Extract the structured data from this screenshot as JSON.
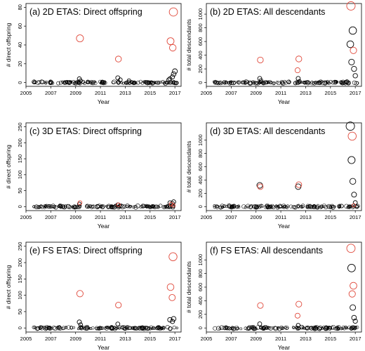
{
  "chart_data": [
    {
      "type": "scatter",
      "title": "(a) 2D ETAS: Direct offspring",
      "xlabel": "Year",
      "ylabel": "# direct offspring",
      "xlim": [
        2005.0,
        2017.5
      ],
      "ylim": [
        0,
        80
      ],
      "xticks": [
        "2005",
        "2007",
        "2009",
        "2011",
        "2013",
        "2015",
        "2017"
      ],
      "yticks": [
        "0",
        "20",
        "40",
        "60",
        "80"
      ],
      "series": [
        {
          "color": "#000000",
          "x": [
            2009.3,
            2009.4,
            2012.4,
            2012.6,
            2013.3,
            2016.5,
            2016.6,
            2016.8,
            2016.9,
            2017.0
          ],
          "y": [
            4,
            2,
            5,
            3,
            2,
            3,
            4,
            6,
            9,
            12
          ]
        },
        {
          "color": "#e0483a",
          "x": [
            2009.35,
            2012.45,
            2016.65,
            2016.88,
            2016.83
          ],
          "y": [
            47,
            25,
            44,
            75,
            37
          ]
        }
      ]
    },
    {
      "type": "scatter",
      "title": "(b) 2D ETAS: All descendants",
      "xlabel": "Year",
      "ylabel": "# total descendants",
      "xlim": [
        2005.0,
        2017.5
      ],
      "ylim": [
        0,
        1100
      ],
      "xticks": [
        "2005",
        "2007",
        "2009",
        "2011",
        "2013",
        "2015",
        "2017"
      ],
      "yticks": [
        "0",
        "200",
        "400",
        "600",
        "800",
        "1000"
      ],
      "series": [
        {
          "color": "#000000",
          "x": [
            2009.3,
            2009.4,
            2012.4,
            2012.5,
            2016.6,
            2016.7,
            2016.8,
            2016.9,
            2017.0
          ],
          "y": [
            60,
            30,
            60,
            20,
            560,
            300,
            760,
            200,
            100
          ]
        },
        {
          "color": "#e0483a",
          "x": [
            2009.35,
            2012.45,
            2012.35,
            2016.65,
            2016.85
          ],
          "y": [
            330,
            345,
            180,
            1120,
            470
          ]
        }
      ]
    },
    {
      "type": "scatter",
      "title": "(c) 3D ETAS: Direct offspring",
      "xlabel": "Year",
      "ylabel": "# direct offspring",
      "xlim": [
        2005.0,
        2017.5
      ],
      "ylim": [
        0,
        250
      ],
      "xticks": [
        "2005",
        "2007",
        "2009",
        "2011",
        "2013",
        "2015",
        "2017"
      ],
      "yticks": [
        "0",
        "50",
        "100",
        "150",
        "200",
        "250"
      ],
      "series": [
        {
          "color": "#000000",
          "x": [
            2009.3,
            2012.4,
            2016.6,
            2016.8,
            2016.9
          ],
          "y": [
            8,
            6,
            12,
            10,
            15
          ]
        },
        {
          "color": "#e0483a",
          "x": [
            2009.35,
            2012.45,
            2016.7,
            2016.88
          ],
          "y": [
            12,
            6,
            8,
            4
          ]
        }
      ]
    },
    {
      "type": "scatter",
      "title": "(d) 3D ETAS: All descendants",
      "xlabel": "Year",
      "ylabel": "# total descendants",
      "xlim": [
        2005.0,
        2017.5
      ],
      "ylim": [
        0,
        1200
      ],
      "xticks": [
        "2005",
        "2007",
        "2009",
        "2011",
        "2013",
        "2015",
        "2017"
      ],
      "yticks": [
        "0",
        "200",
        "400",
        "600",
        "800",
        "1000"
      ],
      "series": [
        {
          "color": "#000000",
          "x": [
            2009.3,
            2012.4,
            2016.6,
            2016.7,
            2016.8,
            2016.9,
            2017.0
          ],
          "y": [
            320,
            300,
            1210,
            700,
            380,
            180,
            60
          ]
        },
        {
          "color": "#e0483a",
          "x": [
            2009.35,
            2012.45,
            2016.75,
            2016.88
          ],
          "y": [
            300,
            330,
            1060,
            20
          ]
        }
      ]
    },
    {
      "type": "scatter",
      "title": "(e) FS ETAS: Direct offspring",
      "xlabel": "Year",
      "ylabel": "# direct offspring",
      "xlim": [
        2005.0,
        2017.5
      ],
      "ylim": [
        0,
        250
      ],
      "xticks": [
        "2005",
        "2007",
        "2009",
        "2011",
        "2013",
        "2015",
        "2017"
      ],
      "yticks": [
        "0",
        "50",
        "100",
        "150",
        "200",
        "250"
      ],
      "series": [
        {
          "color": "#000000",
          "x": [
            2009.3,
            2009.4,
            2012.4,
            2016.6,
            2016.8,
            2016.9
          ],
          "y": [
            18,
            10,
            12,
            25,
            20,
            28
          ]
        },
        {
          "color": "#e0483a",
          "x": [
            2009.35,
            2012.45,
            2016.65,
            2016.85,
            2016.78
          ],
          "y": [
            105,
            70,
            125,
            218,
            93
          ]
        }
      ]
    },
    {
      "type": "scatter",
      "title": "(f) FS ETAS: All descendants",
      "xlabel": "Year",
      "ylabel": "# total descendants",
      "xlim": [
        2005.0,
        2017.5
      ],
      "ylim": [
        0,
        1200
      ],
      "xticks": [
        "2005",
        "2007",
        "2009",
        "2011",
        "2013",
        "2015",
        "2017"
      ],
      "yticks": [
        "0",
        "200",
        "400",
        "600",
        "800",
        "1000"
      ],
      "series": [
        {
          "color": "#000000",
          "x": [
            2009.3,
            2012.4,
            2016.7,
            2016.8,
            2016.9,
            2017.0
          ],
          "y": [
            60,
            40,
            880,
            300,
            150,
            100
          ]
        },
        {
          "color": "#e0483a",
          "x": [
            2009.35,
            2012.45,
            2012.35,
            2016.65,
            2016.85,
            2016.75
          ],
          "y": [
            330,
            350,
            180,
            1170,
            620,
            500
          ]
        }
      ]
    }
  ]
}
